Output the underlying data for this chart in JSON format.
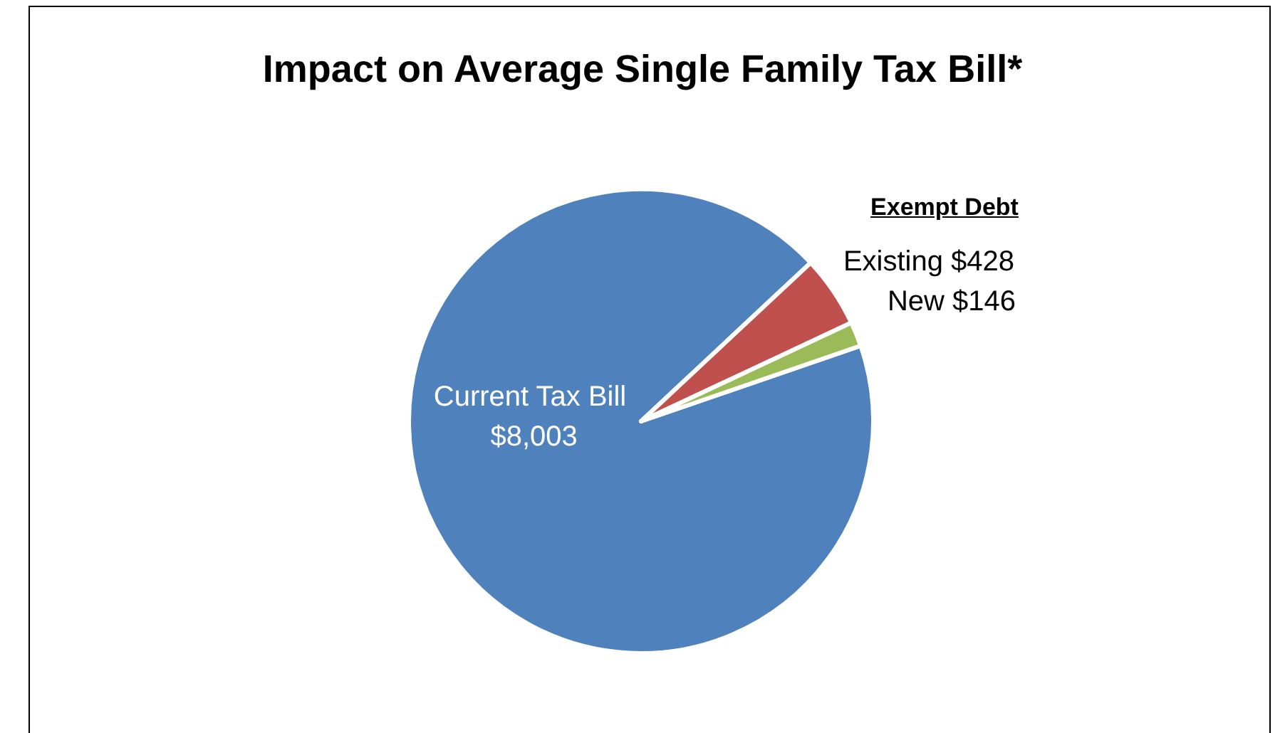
{
  "chart_data": {
    "type": "pie",
    "title": "Impact on Average Single Family Tax Bill*",
    "categories": [
      "Current Tax Bill",
      "Existing",
      "New"
    ],
    "values": [
      8003,
      428,
      146
    ],
    "value_labels": [
      "$8,003",
      "$428",
      "$146"
    ],
    "colors": [
      "#4f81bd",
      "#c0504d",
      "#9bbb59"
    ],
    "annotations": [
      "Exempt Debt"
    ],
    "legend": false
  }
}
